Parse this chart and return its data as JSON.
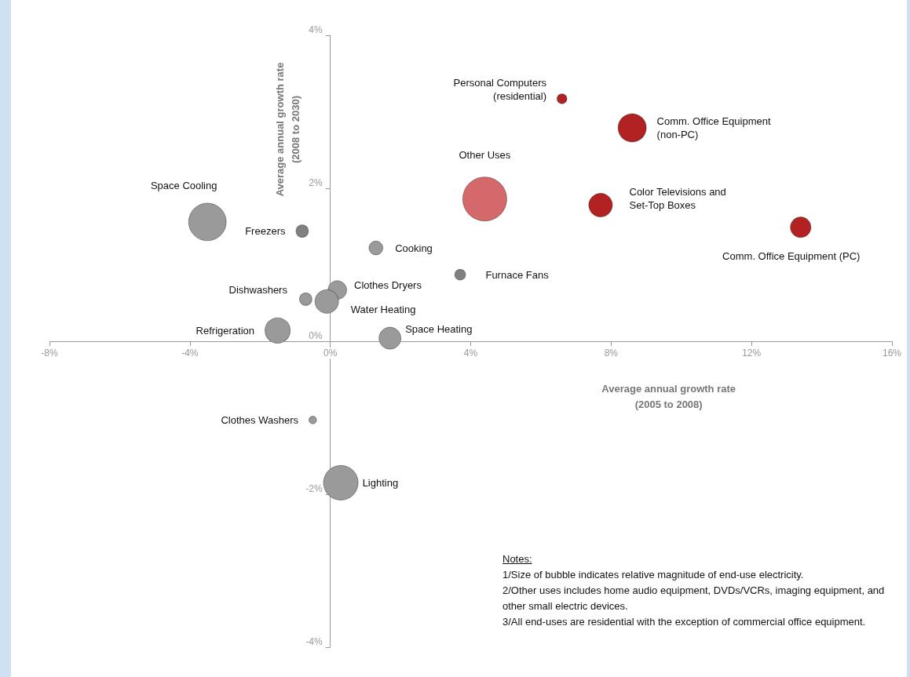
{
  "chart_data": {
    "type": "bubble",
    "xlabel": "Average annual growth rate\n(2005 to 2008)",
    "ylabel": "Average annual growth rate\n(2008 to 2030)",
    "xlim": [
      -8,
      16
    ],
    "xticks": [
      {
        "value": -8,
        "label": "-8%"
      },
      {
        "value": -4,
        "label": "-4%"
      },
      {
        "value": 0,
        "label": "0%"
      },
      {
        "value": 4,
        "label": "4%"
      },
      {
        "value": 8,
        "label": "8%"
      },
      {
        "value": 12,
        "label": "12%"
      },
      {
        "value": 16,
        "label": "16%"
      }
    ],
    "ylim": [
      -4,
      4
    ],
    "yticks": [
      {
        "value": -4,
        "label": "-4%"
      },
      {
        "value": -2,
        "label": "-2%"
      },
      {
        "value": 0,
        "label": "0%"
      },
      {
        "value": 2,
        "label": "2%"
      },
      {
        "value": 4,
        "label": "4%"
      }
    ],
    "grid": false,
    "legend": false,
    "series": [
      {
        "name": "Personal Computers\n(residential)",
        "color": "#b22222",
        "x": [
          6.6
        ],
        "values": [
          3.17
        ],
        "sizes": [
          0.05
        ]
      },
      {
        "name": "Comm. Office Equipment\n(non-PC)",
        "color": "#b22222",
        "x": [
          8.6
        ],
        "values": [
          2.79
        ],
        "sizes": [
          0.41
        ]
      },
      {
        "name": "Other Uses",
        "color": "#d4686a",
        "x": [
          4.4
        ],
        "values": [
          1.86
        ],
        "sizes": [
          1
        ]
      },
      {
        "name": "Color Televisions and\nSet-Top Boxes",
        "color": "#b22222",
        "x": [
          7.7
        ],
        "values": [
          1.78
        ],
        "sizes": [
          0.29
        ]
      },
      {
        "name": "Comm. Office Equipment (PC)",
        "color": "#b22222",
        "x": [
          13.4
        ],
        "values": [
          1.49
        ],
        "sizes": [
          0.22
        ]
      },
      {
        "name": "Space Cooling",
        "color": "#9a9a9a",
        "x": [
          -3.5
        ],
        "values": [
          1.56
        ],
        "sizes": [
          0.73
        ]
      },
      {
        "name": "Freezers",
        "color": "#808080",
        "x": [
          -0.8
        ],
        "values": [
          1.44
        ],
        "sizes": [
          0.08
        ]
      },
      {
        "name": "Cooking",
        "color": "#9a9a9a",
        "x": [
          1.3
        ],
        "values": [
          1.22
        ],
        "sizes": [
          0.1
        ]
      },
      {
        "name": "Furnace Fans",
        "color": "#808080",
        "x": [
          3.7
        ],
        "values": [
          0.87
        ],
        "sizes": [
          0.06
        ]
      },
      {
        "name": "Dishwashers",
        "color": "#9a9a9a",
        "x": [
          -0.7
        ],
        "values": [
          0.55
        ],
        "sizes": [
          0.08
        ]
      },
      {
        "name": "Clothes Dryers",
        "color": "#9a9a9a",
        "x": [
          0.2
        ],
        "values": [
          0.67
        ],
        "sizes": [
          0.18
        ]
      },
      {
        "name": "Water Heating",
        "color": "#9a9a9a",
        "x": [
          -0.1
        ],
        "values": [
          0.52
        ],
        "sizes": [
          0.29
        ]
      },
      {
        "name": "Refrigeration",
        "color": "#9a9a9a",
        "x": [
          -1.5
        ],
        "values": [
          0.14
        ],
        "sizes": [
          0.33
        ]
      },
      {
        "name": "Space Heating",
        "color": "#9a9a9a",
        "x": [
          1.7
        ],
        "values": [
          0.04
        ],
        "sizes": [
          0.25
        ]
      },
      {
        "name": "Clothes Washers",
        "color": "#9a9a9a",
        "x": [
          -0.5
        ],
        "values": [
          -1.03
        ],
        "sizes": [
          0.03
        ]
      },
      {
        "name": "Lighting",
        "color": "#9a9a9a",
        "x": [
          0.3
        ],
        "values": [
          -1.85
        ],
        "sizes": [
          0.62
        ]
      }
    ],
    "annotations": [
      "Notes:",
      "1/Size of bubble indicates relative magnitude of end-use electricity.",
      "2/Other uses includes home audio equipment, DVDs/VCRs, imaging equipment, and other small electric devices.",
      "3/All end-uses are residential with the exception of commercial office equipment."
    ]
  }
}
